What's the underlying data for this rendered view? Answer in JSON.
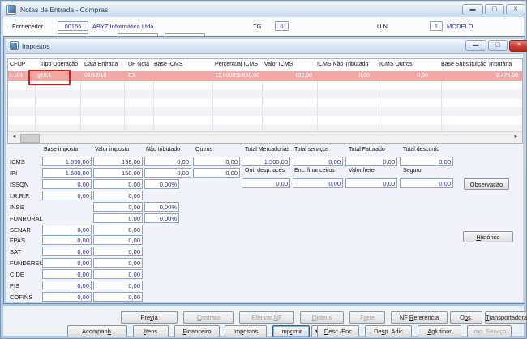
{
  "main_window": {
    "title": "Notas de Entrada - Compras",
    "form": {
      "fornecedor_label": "Fornecedor",
      "fornecedor_code": "00156",
      "fornecedor_name": "ABYZ Informática Ltda.",
      "tg_label": "TG",
      "tg_value": "0",
      "un_label": "U.N.",
      "un_value": "1",
      "un_name": "MODELO"
    }
  },
  "dialog": {
    "title": "Impostos",
    "table": {
      "columns": [
        "CFOP",
        "Tipo Operação",
        "Data Entrada",
        "UF Nota",
        "Base ICMS",
        "Percentual ICMS",
        "Valor ICMS",
        "ICMS Não Tributado",
        "ICMS Outros",
        "Base Substituição Tributária"
      ],
      "row": [
        "1.101",
        "g10.1",
        "01/12/18",
        "EX",
        "1.650,00",
        "12,0000%",
        "198,00",
        "0,00",
        "0,00",
        "2.475,00"
      ]
    },
    "tax_form": {
      "col_headers": [
        "Base imposto",
        "Valor imposto",
        "Não tributado",
        "Outros"
      ],
      "rows": [
        {
          "label": "ICMS",
          "base": "1.650,00",
          "valor": "198,00",
          "nt": "0,00",
          "outros": "0,00"
        },
        {
          "label": "IPI",
          "base": "1.500,00",
          "valor": "150,00",
          "nt": "0,00",
          "outros": "0,00"
        },
        {
          "label": "ISSQN",
          "base": "0,00",
          "valor": "0,00",
          "pct": "0,00%"
        },
        {
          "label": "I.R.R.F.",
          "base": "0,00",
          "valor": "0,00"
        },
        {
          "label": "INSS",
          "valor": "0,00",
          "pct": "0,00%"
        },
        {
          "label": "FUNRURAL",
          "valor": "0,00",
          "pct": "0,00%"
        },
        {
          "label": "SENAR",
          "base": "0,00",
          "valor": "0,00"
        },
        {
          "label": "FPAS",
          "base": "0,00",
          "valor": "0,00"
        },
        {
          "label": "SAT",
          "base": "0,00",
          "valor": "0,00"
        },
        {
          "label": "FUNDERSUL",
          "base": "0,00",
          "valor": "0,00"
        },
        {
          "label": "CIDE",
          "base": "0,00",
          "valor": "0,00"
        },
        {
          "label": "PIS",
          "base": "0,00",
          "valor": "0,00"
        },
        {
          "label": "COFINS",
          "base": "0,00",
          "valor": "0,00"
        }
      ],
      "totals_row1": [
        {
          "label": "Total Mercadorias",
          "value": "1.500,00"
        },
        {
          "label": "Total serviços",
          "value": "0,00"
        },
        {
          "label": "Total Faturado",
          "value": "0,00"
        },
        {
          "label": "Total desconto",
          "value": "0,00"
        }
      ],
      "totals_row2": [
        {
          "label": "Out. desp. aces.",
          "value": "0,00"
        },
        {
          "label": "Enc. financeiros",
          "value": "0,00"
        },
        {
          "label": "Valor frete",
          "value": "0,00"
        },
        {
          "label": "Seguro",
          "value": "0,00"
        }
      ],
      "observacao_button": "Observação",
      "historico_button": "Histórico"
    }
  },
  "footer": {
    "row1": [
      {
        "label": "Prévia",
        "u": 3,
        "disabled": false
      },
      {
        "label": "Contrato",
        "u": 0,
        "disabled": true
      },
      {
        "label": "Efetivar NF",
        "u": 9,
        "disabled": true
      },
      {
        "label": "Ordens",
        "u": 0,
        "disabled": true
      },
      {
        "label": "Frete",
        "u": 1,
        "disabled": true
      },
      {
        "label": "NF Referência",
        "u": 3,
        "disabled": false
      },
      {
        "label": "Obs.",
        "u": 1,
        "disabled": false
      },
      {
        "label": "Transportadora",
        "u": 0,
        "disabled": false
      }
    ],
    "row2": [
      {
        "label": "Acompanh.",
        "u": 7,
        "disabled": false
      },
      {
        "label": "Itens",
        "u": 0,
        "disabled": false
      },
      {
        "label": "Financeiro",
        "u": 0,
        "disabled": false
      },
      {
        "label": "Impostos",
        "u": 2,
        "disabled": false
      },
      {
        "label": "Imprimir",
        "u": 3,
        "disabled": false,
        "focused": true
      },
      {
        "label": "Desc./Enc",
        "u": 0,
        "disabled": false
      },
      {
        "label": "Desp. Adic",
        "u": 2,
        "disabled": false
      },
      {
        "label": "Aglutinar",
        "u": 0,
        "disabled": false
      },
      {
        "label": "Imp. Serviço",
        "u": -1,
        "disabled": true
      }
    ],
    "imprimir_dropdown_icon": "▼"
  },
  "colors": {
    "selected_row": "#f2a7a2",
    "annotation_box": "#c9201d",
    "field_text": "#2b2b99"
  }
}
